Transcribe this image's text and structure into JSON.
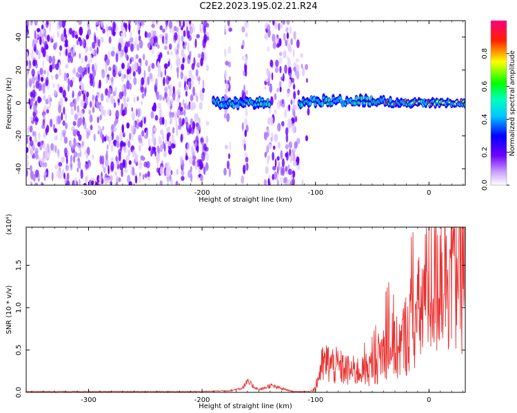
{
  "title": "C2E2.2023.195.02.21.R24",
  "chart_data": [
    {
      "type": "heatmap",
      "xlabel": "Height of straight line (km)",
      "ylabel": "Frequency (Hz)",
      "xlim": [
        -355,
        32
      ],
      "ylim": [
        -50,
        50
      ],
      "xticks": [
        -300,
        -200,
        -100,
        0
      ],
      "xtick_labels": [
        "-300",
        "-200",
        "-100",
        "0"
      ],
      "yticks": [
        -40,
        -20,
        0,
        20,
        40
      ],
      "ytick_labels": [
        "-40",
        "-20",
        "0",
        "20",
        "40"
      ],
      "colorbar": {
        "label": "Normalized spectral amplitude",
        "range": [
          0,
          1
        ],
        "ticks": [
          0.0,
          0.2,
          0.4,
          0.6,
          0.8
        ],
        "tick_labels": [
          "0.0",
          "0.2",
          "0.4",
          "0.6",
          "0.8"
        ],
        "colors": [
          "#ffffff",
          "#5000ff",
          "#0000ff",
          "#00ffff",
          "#00ff00",
          "#ffff00",
          "#ff0000",
          "#ff0080"
        ]
      },
      "noise_regions_km": [
        [
          -355,
          -195
        ],
        [
          -180,
          -175
        ],
        [
          -165,
          -160
        ],
        [
          -145,
          -115
        ]
      ],
      "signal_band": {
        "freq_hz": 0,
        "x_start_km": -190,
        "x_end_km": 32,
        "gap_km": [
          -140,
          -115
        ]
      },
      "grid": false
    },
    {
      "type": "line",
      "xlabel": "Height of straight line (km)",
      "ylabel": "SNR (10 * v/v)",
      "y_multiplier": "(x10⁴)",
      "xlim": [
        -355,
        32
      ],
      "ylim": [
        0,
        1.95
      ],
      "xticks": [
        -300,
        -200,
        -100,
        0
      ],
      "xtick_labels": [
        "-300",
        "-200",
        "-100",
        "0"
      ],
      "yticks": [
        0.0,
        0.5,
        1.0,
        1.5
      ],
      "ytick_labels": [
        "0.0",
        "0.5",
        "1.0",
        "1.5"
      ],
      "line_color": "#e8302f",
      "series": [
        {
          "x": [
            -355,
            -300,
            -250,
            -200,
            -175,
            -165,
            -160,
            -150,
            -145,
            -140,
            -120,
            -105,
            -100,
            -95,
            -90,
            -80,
            -70,
            -60,
            -50,
            -45,
            -40,
            -35,
            -30,
            -25,
            -20,
            -15,
            -10,
            -5,
            0,
            5,
            10,
            15,
            20,
            25,
            32
          ],
          "y": [
            0.01,
            0.01,
            0.01,
            0.01,
            0.02,
            0.05,
            0.12,
            0.03,
            0.05,
            0.08,
            0.01,
            0.01,
            0.05,
            0.3,
            0.35,
            0.3,
            0.25,
            0.25,
            0.3,
            0.4,
            0.5,
            0.6,
            0.5,
            0.55,
            0.7,
            0.85,
            0.9,
            1.05,
            1.2,
            1.35,
            1.5,
            1.6,
            1.65,
            1.7,
            1.75
          ]
        }
      ],
      "grid": false
    }
  ]
}
